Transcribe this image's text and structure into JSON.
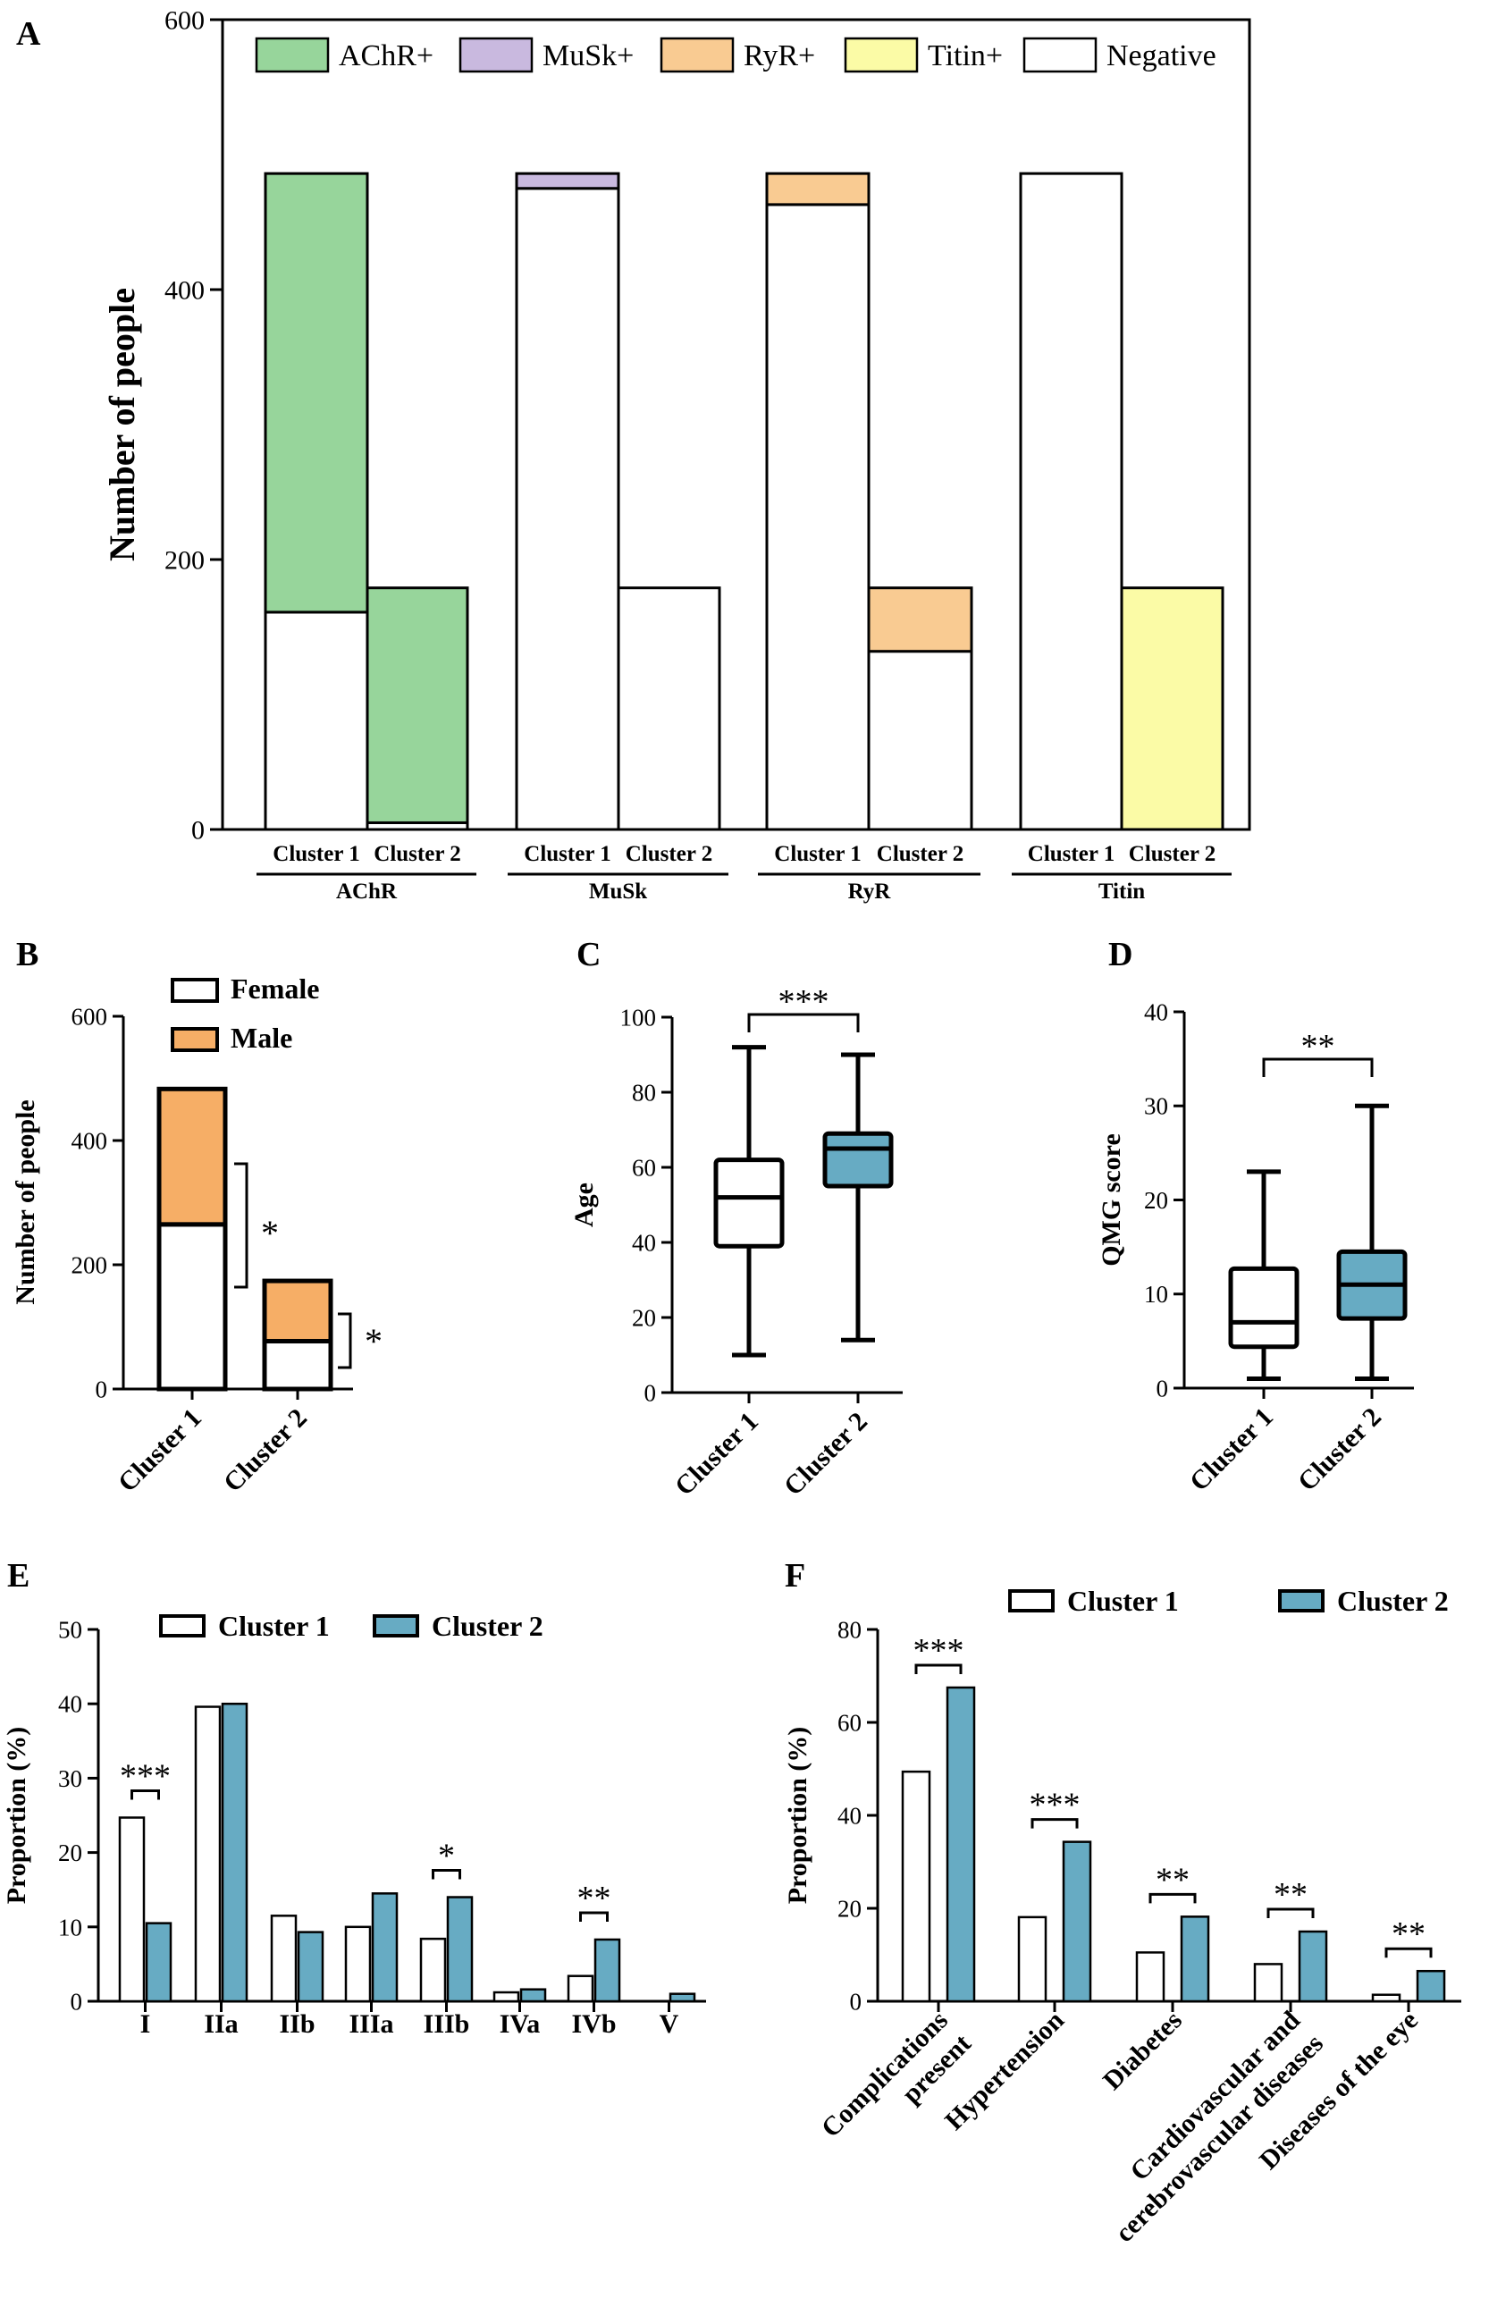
{
  "colors": {
    "achr": "#97d59b",
    "musk": "#c9b9df",
    "ryr": "#f9cb92",
    "titin": "#fbfba6",
    "negative": "#ffffff",
    "male": "#f6ae66",
    "female": "#ffffff",
    "cluster1": "#ffffff",
    "cluster2": "#67abc3"
  },
  "chart_data": [
    {
      "panel": "A",
      "type": "bar",
      "stacked": true,
      "ylabel": "Number of people",
      "ylim": [
        0,
        600
      ],
      "yticks": [
        "0",
        "200",
        "400",
        "600"
      ],
      "legend": [
        "AChR+",
        "MuSk+",
        "RyR+",
        "Titin+",
        "Negative"
      ],
      "groups": [
        {
          "name": "AChR",
          "bars": [
            {
              "label": "Cluster 1",
              "negative": 161,
              "positive": 325,
              "pos_key": "achr"
            },
            {
              "label": "Cluster 2",
              "negative": 5,
              "positive": 174,
              "pos_key": "achr"
            }
          ]
        },
        {
          "name": "MuSk",
          "bars": [
            {
              "label": "Cluster 1",
              "negative": 475,
              "positive": 11,
              "pos_key": "musk"
            },
            {
              "label": "Cluster 2",
              "negative": 179,
              "positive": 0,
              "pos_key": "musk"
            }
          ]
        },
        {
          "name": "RyR",
          "bars": [
            {
              "label": "Cluster 1",
              "negative": 463,
              "positive": 23,
              "pos_key": "ryr"
            },
            {
              "label": "Cluster 2",
              "negative": 132,
              "positive": 47,
              "pos_key": "ryr"
            }
          ]
        },
        {
          "name": "Titin",
          "bars": [
            {
              "label": "Cluster 1",
              "negative": 486,
              "positive": 0,
              "pos_key": "titin"
            },
            {
              "label": "Cluster 2",
              "negative": 0,
              "positive": 179,
              "pos_key": "titin"
            }
          ]
        }
      ]
    },
    {
      "panel": "B",
      "type": "bar",
      "stacked": true,
      "ylabel": "Number of people",
      "ylim": [
        0,
        600
      ],
      "yticks": [
        "0",
        "200",
        "400",
        "600"
      ],
      "categories": [
        "Cluster 1",
        "Cluster 2"
      ],
      "series": [
        {
          "name": "Female",
          "values": [
            265,
            77
          ]
        },
        {
          "name": "Male",
          "values": [
            218,
            97
          ]
        }
      ],
      "significance": [
        "*",
        "*"
      ]
    },
    {
      "panel": "C",
      "type": "box",
      "ylabel": "Age",
      "ylim": [
        0,
        100
      ],
      "yticks": [
        "0",
        "20",
        "40",
        "60",
        "80",
        "100"
      ],
      "categories": [
        "Cluster 1",
        "Cluster 2"
      ],
      "boxes": [
        {
          "min": 10,
          "q1": 39,
          "median": 52,
          "q3": 62,
          "max": 92
        },
        {
          "min": 14,
          "q1": 55,
          "median": 65,
          "q3": 69,
          "max": 90
        }
      ],
      "significance": "***"
    },
    {
      "panel": "D",
      "type": "box",
      "ylabel": "QMG score",
      "ylim": [
        0,
        40
      ],
      "yticks": [
        "0",
        "10",
        "20",
        "30",
        "40"
      ],
      "categories": [
        "Cluster 1",
        "Cluster 2"
      ],
      "boxes": [
        {
          "min": 1,
          "q1": 4.4,
          "median": 7,
          "q3": 12.7,
          "max": 23
        },
        {
          "min": 1,
          "q1": 7.4,
          "median": 11,
          "q3": 14.5,
          "max": 30
        }
      ],
      "significance": "**"
    },
    {
      "panel": "E",
      "type": "bar",
      "ylabel": "Proportion (%)",
      "ylim": [
        0,
        50
      ],
      "yticks": [
        "0",
        "10",
        "20",
        "30",
        "40",
        "50"
      ],
      "categories": [
        "I",
        "IIa",
        "IIb",
        "IIIa",
        "IIIb",
        "IVa",
        "IVb",
        "V"
      ],
      "series": [
        {
          "name": "Cluster 1",
          "values": [
            24.7,
            39.6,
            11.5,
            10.0,
            8.4,
            1.2,
            3.4,
            0
          ]
        },
        {
          "name": "Cluster 2",
          "values": [
            10.5,
            40.0,
            9.3,
            14.5,
            14.0,
            1.6,
            8.3,
            1.0
          ]
        }
      ],
      "significance": [
        "***",
        "",
        "",
        "",
        "*",
        "",
        "**",
        ""
      ]
    },
    {
      "panel": "F",
      "type": "bar",
      "ylabel": "Proportion (%)",
      "ylim": [
        0,
        80
      ],
      "yticks": [
        "0",
        "20",
        "40",
        "60",
        "80"
      ],
      "categories": [
        [
          "Complications",
          "present"
        ],
        [
          "Hypertension"
        ],
        [
          "Diabetes"
        ],
        [
          "Cardiovascular and",
          "cerebrovascular diseases"
        ],
        [
          "Diseases of the eye"
        ]
      ],
      "series": [
        {
          "name": "Cluster 1",
          "values": [
            49.4,
            18.1,
            10.5,
            8.0,
            1.4
          ]
        },
        {
          "name": "Cluster 2",
          "values": [
            67.5,
            34.3,
            18.2,
            15.0,
            6.5
          ]
        }
      ],
      "significance": [
        "***",
        "***",
        "**",
        "**",
        "**"
      ]
    }
  ],
  "panel_letters": [
    "A",
    "B",
    "C",
    "D",
    "E",
    "F"
  ]
}
